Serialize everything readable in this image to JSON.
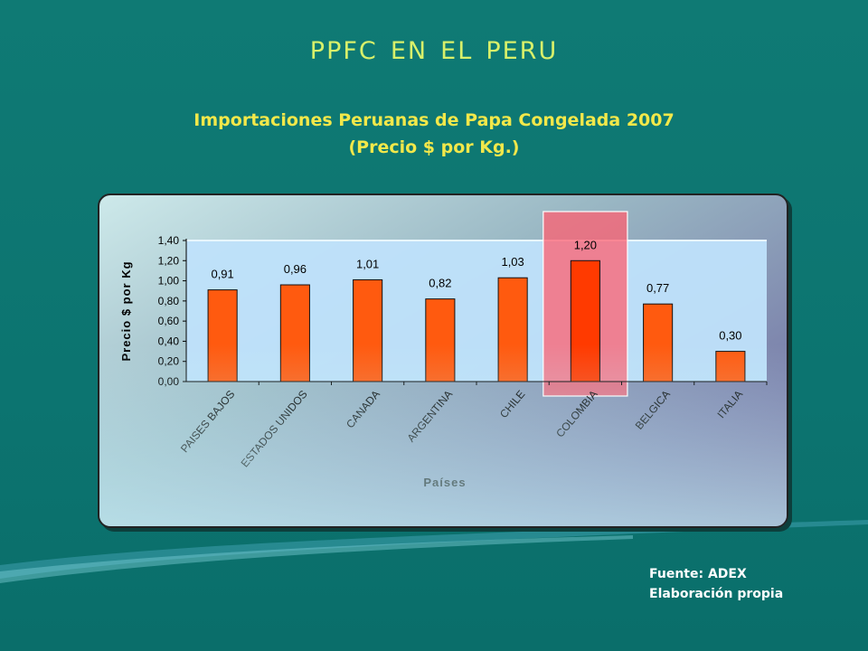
{
  "slide": {
    "title": "PPFC EN EL PERU",
    "subtitle_line1": "Importaciones Peruanas de Papa Congelada 2007",
    "subtitle_line2": "(Precio $ por Kg.)"
  },
  "source": {
    "line1": "Fuente: ADEX",
    "line2": "Elaboración propia"
  },
  "colors": {
    "bar": "#ff5a0f",
    "bar_highlight": "#ff3a00",
    "highlight_box": "#ff6070",
    "title": "#d8f06a",
    "subtitle": "#f2e84a"
  },
  "chart_data": {
    "type": "bar",
    "categories": [
      "PAISES BAJOS",
      "ESTADOS UNIDOS",
      "CANADA",
      "ARGENTINA",
      "CHILE",
      "COLOMBIA",
      "BELGICA",
      "ITALIA"
    ],
    "values": [
      0.91,
      0.96,
      1.01,
      0.82,
      1.03,
      1.2,
      0.77,
      0.3
    ],
    "value_labels": [
      "0,91",
      "0,96",
      "1,01",
      "0,82",
      "1,03",
      "1,20",
      "0,77",
      "0,30"
    ],
    "highlighted_category": "COLOMBIA",
    "xlabel": "Países",
    "ylabel": "Precio $ por Kg",
    "ylim": [
      0,
      1.4
    ],
    "yticks": [
      "0,00",
      "0,20",
      "0,40",
      "0,60",
      "0,80",
      "1,00",
      "1,20",
      "1,40"
    ],
    "grid": false,
    "legend": "none"
  }
}
